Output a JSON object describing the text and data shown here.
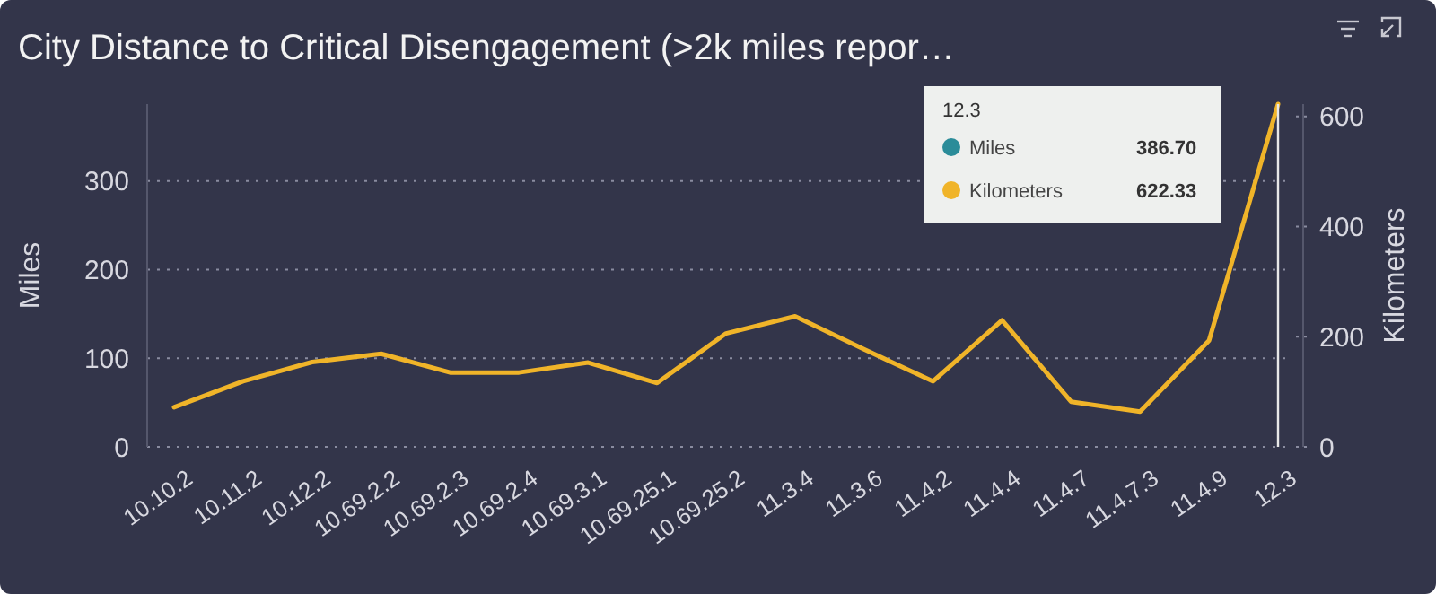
{
  "chart_data": {
    "type": "line",
    "title": "City Distance to Critical Disengagement (>2k miles repor…",
    "ylabel": "Miles",
    "y2label": "Kilometers",
    "categories": [
      "10.10.2",
      "10.11.2",
      "10.12.2",
      "10.69.2.2",
      "10.69.2.3",
      "10.69.2.4",
      "10.69.3.1",
      "10.69.25.1",
      "10.69.25.2",
      "11.3.4",
      "11.3.6",
      "11.4.2",
      "11.4.4",
      "11.4.7",
      "11.4.7.3",
      "11.4.9",
      "12.3"
    ],
    "series": [
      {
        "name": "Miles",
        "color": "#2b8c99",
        "values": [
          null,
          null,
          null,
          null,
          null,
          null,
          null,
          null,
          null,
          null,
          null,
          null,
          null,
          null,
          null,
          null,
          null
        ]
      },
      {
        "name": "Kilometers",
        "color": "#f0b429",
        "axis": "y2",
        "values": [
          72,
          119,
          154,
          169,
          135,
          135,
          153,
          116,
          206,
          237,
          177,
          119,
          230,
          82,
          64,
          193,
          622.33
        ]
      }
    ],
    "annotations": [
      "386.70",
      "622.33"
    ],
    "ylim": [
      0,
      386.7
    ],
    "yticks": [
      0,
      100,
      200,
      300
    ],
    "y2lim": [
      0,
      622.33
    ],
    "y2ticks": [
      0,
      200,
      400,
      600
    ],
    "grid": "y",
    "legend": "top right",
    "legend_title": "12.3",
    "marker": "none",
    "line_style": "solid",
    "ref_lines": [
      {
        "axis": "x",
        "value": "12.3",
        "color": "#e8e8e8"
      }
    ]
  }
}
